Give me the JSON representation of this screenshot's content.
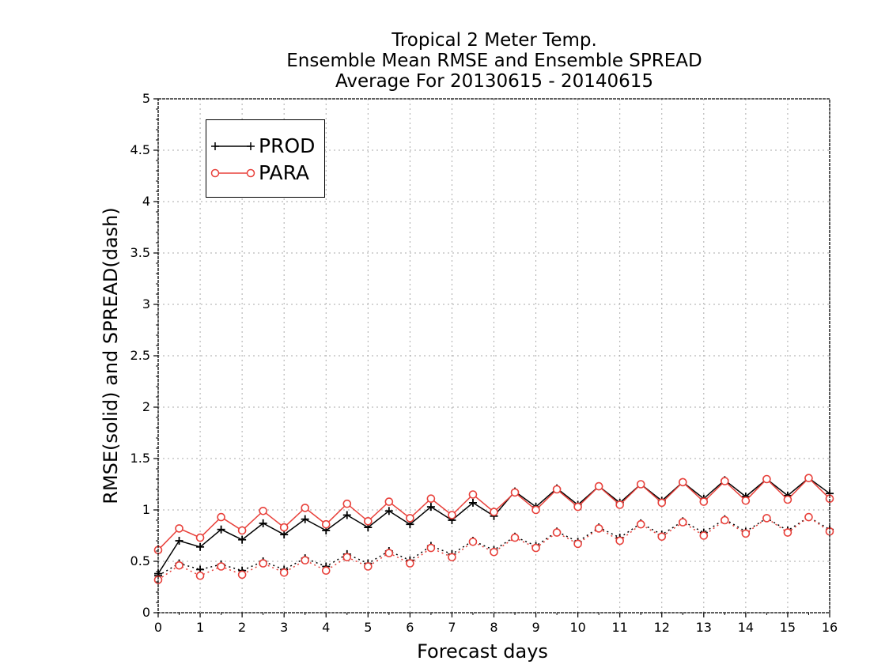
{
  "chart_data": {
    "type": "line",
    "title_lines": [
      "Tropical 2 Meter Temp.",
      "Ensemble Mean RMSE and Ensemble SPREAD",
      "Average For 20130615 - 20140615"
    ],
    "xlabel": "Forecast days",
    "ylabel": "RMSE(solid) and SPREAD(dash)",
    "xlim": [
      0,
      16
    ],
    "ylim": [
      0,
      5
    ],
    "x_ticks": [
      "0",
      "1",
      "2",
      "3",
      "4",
      "5",
      "6",
      "7",
      "8",
      "9",
      "10",
      "11",
      "12",
      "13",
      "14",
      "15",
      "16"
    ],
    "y_ticks": [
      "0",
      "0.5",
      "1",
      "1.5",
      "2",
      "2.5",
      "3",
      "3.5",
      "4",
      "4.5",
      "5"
    ],
    "grid": true,
    "legend_position": "top-left",
    "x": [
      0,
      0.5,
      1,
      1.5,
      2,
      2.5,
      3,
      3.5,
      4,
      4.5,
      5,
      5.5,
      6,
      6.5,
      7,
      7.5,
      8,
      8.5,
      9,
      9.5,
      10,
      10.5,
      11,
      11.5,
      12,
      12.5,
      13,
      13.5,
      14,
      14.5,
      15,
      15.5,
      16
    ],
    "series": [
      {
        "name": "PROD",
        "metric": "RMSE",
        "style": "solid",
        "marker": "plus",
        "color": "#000000",
        "values": [
          0.38,
          0.7,
          0.64,
          0.81,
          0.71,
          0.87,
          0.76,
          0.91,
          0.8,
          0.95,
          0.83,
          0.99,
          0.86,
          1.03,
          0.9,
          1.07,
          0.94,
          1.18,
          1.03,
          1.21,
          1.05,
          1.23,
          1.07,
          1.25,
          1.09,
          1.27,
          1.11,
          1.29,
          1.13,
          1.3,
          1.14,
          1.31,
          1.16
        ]
      },
      {
        "name": "PARA",
        "metric": "RMSE",
        "style": "solid",
        "marker": "circle",
        "color": "#e8403a",
        "values": [
          0.61,
          0.82,
          0.73,
          0.93,
          0.8,
          0.99,
          0.83,
          1.02,
          0.86,
          1.06,
          0.89,
          1.08,
          0.92,
          1.11,
          0.95,
          1.15,
          0.98,
          1.17,
          1.0,
          1.2,
          1.03,
          1.23,
          1.05,
          1.25,
          1.07,
          1.27,
          1.08,
          1.28,
          1.09,
          1.3,
          1.1,
          1.31,
          1.11
        ]
      },
      {
        "name": "PROD",
        "metric": "SPREAD",
        "style": "dash",
        "marker": "plus",
        "color": "#000000",
        "values": [
          0.36,
          0.48,
          0.42,
          0.47,
          0.41,
          0.5,
          0.42,
          0.53,
          0.45,
          0.57,
          0.48,
          0.6,
          0.51,
          0.65,
          0.57,
          0.7,
          0.61,
          0.74,
          0.65,
          0.79,
          0.69,
          0.83,
          0.73,
          0.87,
          0.76,
          0.89,
          0.78,
          0.91,
          0.79,
          0.92,
          0.8,
          0.93,
          0.81
        ]
      },
      {
        "name": "PARA",
        "metric": "SPREAD",
        "style": "dash",
        "marker": "circle",
        "color": "#e8403a",
        "values": [
          0.32,
          0.46,
          0.36,
          0.45,
          0.37,
          0.48,
          0.39,
          0.51,
          0.41,
          0.54,
          0.45,
          0.58,
          0.48,
          0.63,
          0.54,
          0.69,
          0.59,
          0.73,
          0.63,
          0.78,
          0.67,
          0.82,
          0.7,
          0.86,
          0.74,
          0.88,
          0.75,
          0.9,
          0.77,
          0.92,
          0.78,
          0.93,
          0.79
        ]
      }
    ],
    "legend": [
      {
        "label": "PROD",
        "color": "#000000",
        "marker": "plus"
      },
      {
        "label": "PARA",
        "color": "#e8403a",
        "marker": "circle"
      }
    ]
  }
}
